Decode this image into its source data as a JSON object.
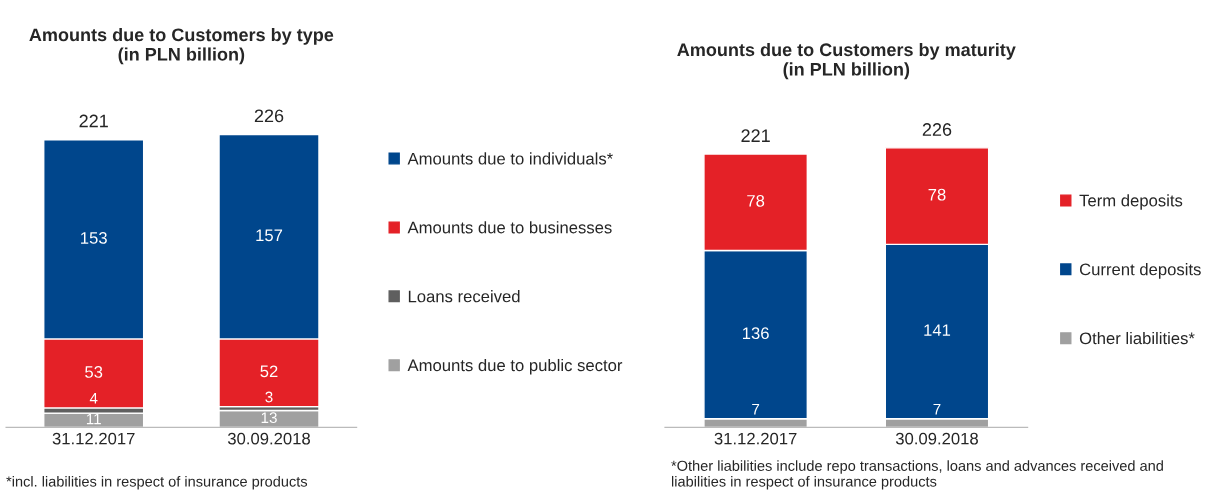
{
  "chart_data": [
    {
      "type": "bar",
      "stacked": true,
      "title": "Amounts due to Customers by type\n(in PLN billion)",
      "categories": [
        "31.12.2017",
        "30.09.2018"
      ],
      "series": [
        {
          "name": "Amounts due to public sector",
          "color": "#a0a0a0",
          "values": [
            11,
            13
          ]
        },
        {
          "name": "Loans received",
          "color": "#5f5f5f",
          "values": [
            4,
            3
          ]
        },
        {
          "name": "Amounts due to businesses",
          "color": "#e42127",
          "values": [
            53,
            52
          ]
        },
        {
          "name": "Amounts due to individuals*",
          "color": "#00468c",
          "values": [
            153,
            157
          ]
        }
      ],
      "totals": [
        "221",
        "226"
      ],
      "data_labels": true,
      "legend": "right",
      "grid": false,
      "tick_labels": "x",
      "annotations": [
        "*incl. liabilities in respect of insurance products"
      ]
    },
    {
      "type": "bar",
      "stacked": true,
      "title": "Amounts due to Customers by maturity\n(in PLN billion)",
      "categories": [
        "31.12.2017",
        "30.09.2018"
      ],
      "series": [
        {
          "name": "Other liabilities*",
          "color": "#a0a0a0",
          "values": [
            7,
            7
          ]
        },
        {
          "name": "Current deposits",
          "color": "#00468c",
          "values": [
            136,
            141
          ]
        },
        {
          "name": "Term deposits",
          "color": "#e42127",
          "values": [
            78,
            78
          ]
        }
      ],
      "totals": [
        "221",
        "226"
      ],
      "data_labels": true,
      "legend": "right",
      "grid": false,
      "tick_labels": "x",
      "annotations": [
        "*Other liabilities include repo transactions, loans and advances received and liabilities in respect of insurance products"
      ]
    }
  ]
}
